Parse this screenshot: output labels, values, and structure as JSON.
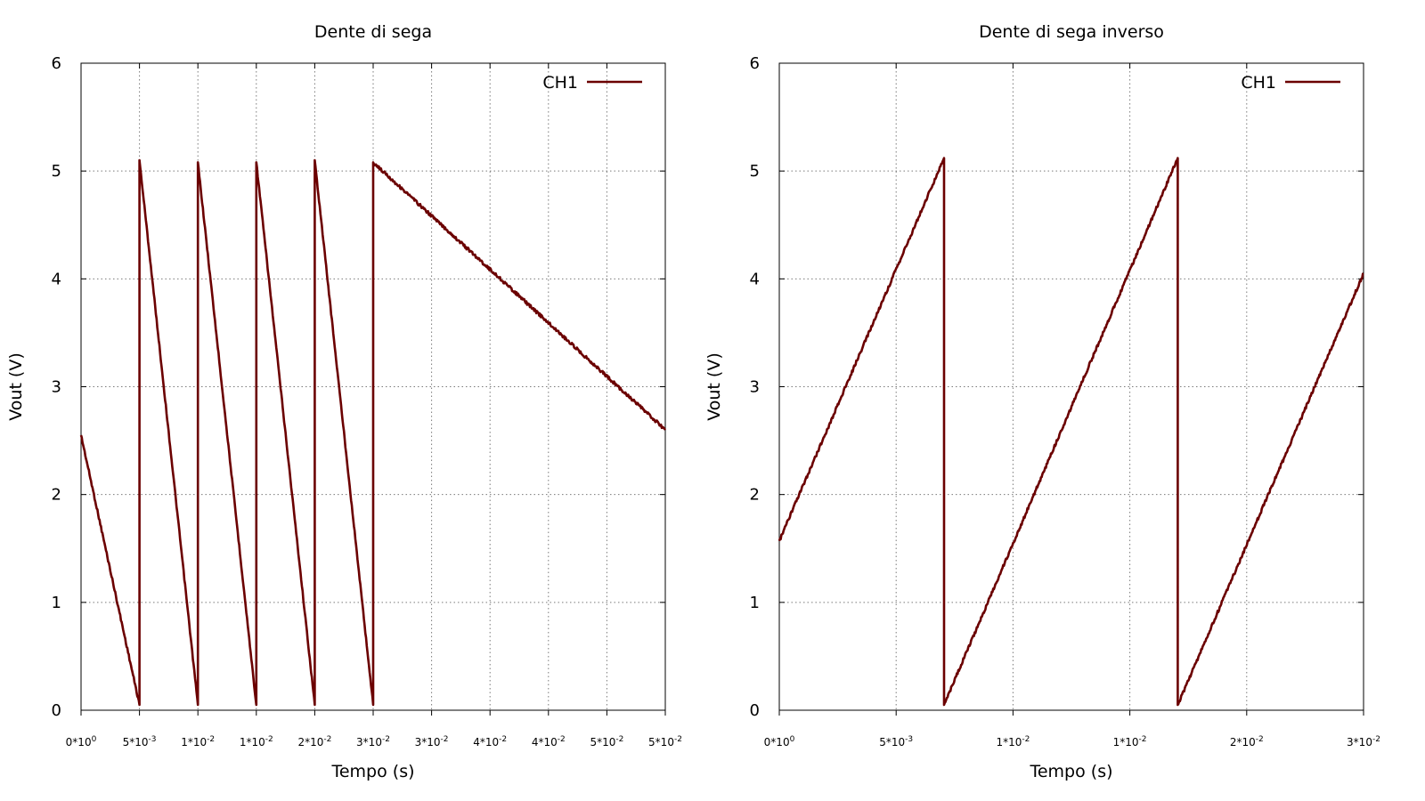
{
  "colors": {
    "series": "#6b0000",
    "grid": "#7a7a7a"
  },
  "chart_data": [
    {
      "type": "line",
      "title": "Dente di sega",
      "xlabel": "Tempo (s)",
      "ylabel": "Vout (V)",
      "xlim": [
        0,
        0.05
      ],
      "ylim": [
        0,
        6
      ],
      "yticks": [
        "0",
        "1",
        "2",
        "3",
        "4",
        "5",
        "6"
      ],
      "xticks": [
        {
          "mant": "0*10",
          "exp": "0"
        },
        {
          "mant": "5*10",
          "exp": "-3"
        },
        {
          "mant": "1*10",
          "exp": "-2"
        },
        {
          "mant": "1*10",
          "exp": "-2"
        },
        {
          "mant": "2*10",
          "exp": "-2"
        },
        {
          "mant": "3*10",
          "exp": "-2"
        },
        {
          "mant": "3*10",
          "exp": "-2"
        },
        {
          "mant": "4*10",
          "exp": "-2"
        },
        {
          "mant": "4*10",
          "exp": "-2"
        },
        {
          "mant": "5*10",
          "exp": "-2"
        },
        {
          "mant": "5*10",
          "exp": "-2"
        }
      ],
      "grid": true,
      "legend_position": "top-right",
      "series": [
        {
          "name": "CH1",
          "x": [
            0,
            0.005,
            0.005,
            0.005,
            0.01,
            0.01,
            0.01,
            0.015,
            0.015,
            0.015,
            0.02,
            0.02,
            0.02,
            0.025,
            0.025,
            0.025,
            0.05
          ],
          "y": [
            2.55,
            0.05,
            0.05,
            5.1,
            0.05,
            0.05,
            5.08,
            0.05,
            0.05,
            5.08,
            0.05,
            0.05,
            5.1,
            0.05,
            0.05,
            5.08,
            2.6
          ]
        }
      ]
    },
    {
      "type": "line",
      "title": "Dente di sega inverso",
      "xlabel": "Tempo (s)",
      "ylabel": "Vout (V)",
      "xlim": [
        0,
        0.025
      ],
      "ylim": [
        0,
        6
      ],
      "yticks": [
        "0",
        "1",
        "2",
        "3",
        "4",
        "5",
        "6"
      ],
      "xticks": [
        {
          "mant": "0*10",
          "exp": "0"
        },
        {
          "mant": "5*10",
          "exp": "-3"
        },
        {
          "mant": "1*10",
          "exp": "-2"
        },
        {
          "mant": "1*10",
          "exp": "-2"
        },
        {
          "mant": "2*10",
          "exp": "-2"
        },
        {
          "mant": "3*10",
          "exp": "-2"
        }
      ],
      "grid": true,
      "legend_position": "top-right",
      "series": [
        {
          "name": "CH1",
          "x": [
            0,
            0.00705,
            0.00705,
            0.00705,
            0.01705,
            0.01705,
            0.01705,
            0.025
          ],
          "y": [
            1.57,
            5.12,
            5.12,
            0.05,
            5.12,
            5.12,
            0.05,
            4.05
          ]
        }
      ]
    }
  ]
}
